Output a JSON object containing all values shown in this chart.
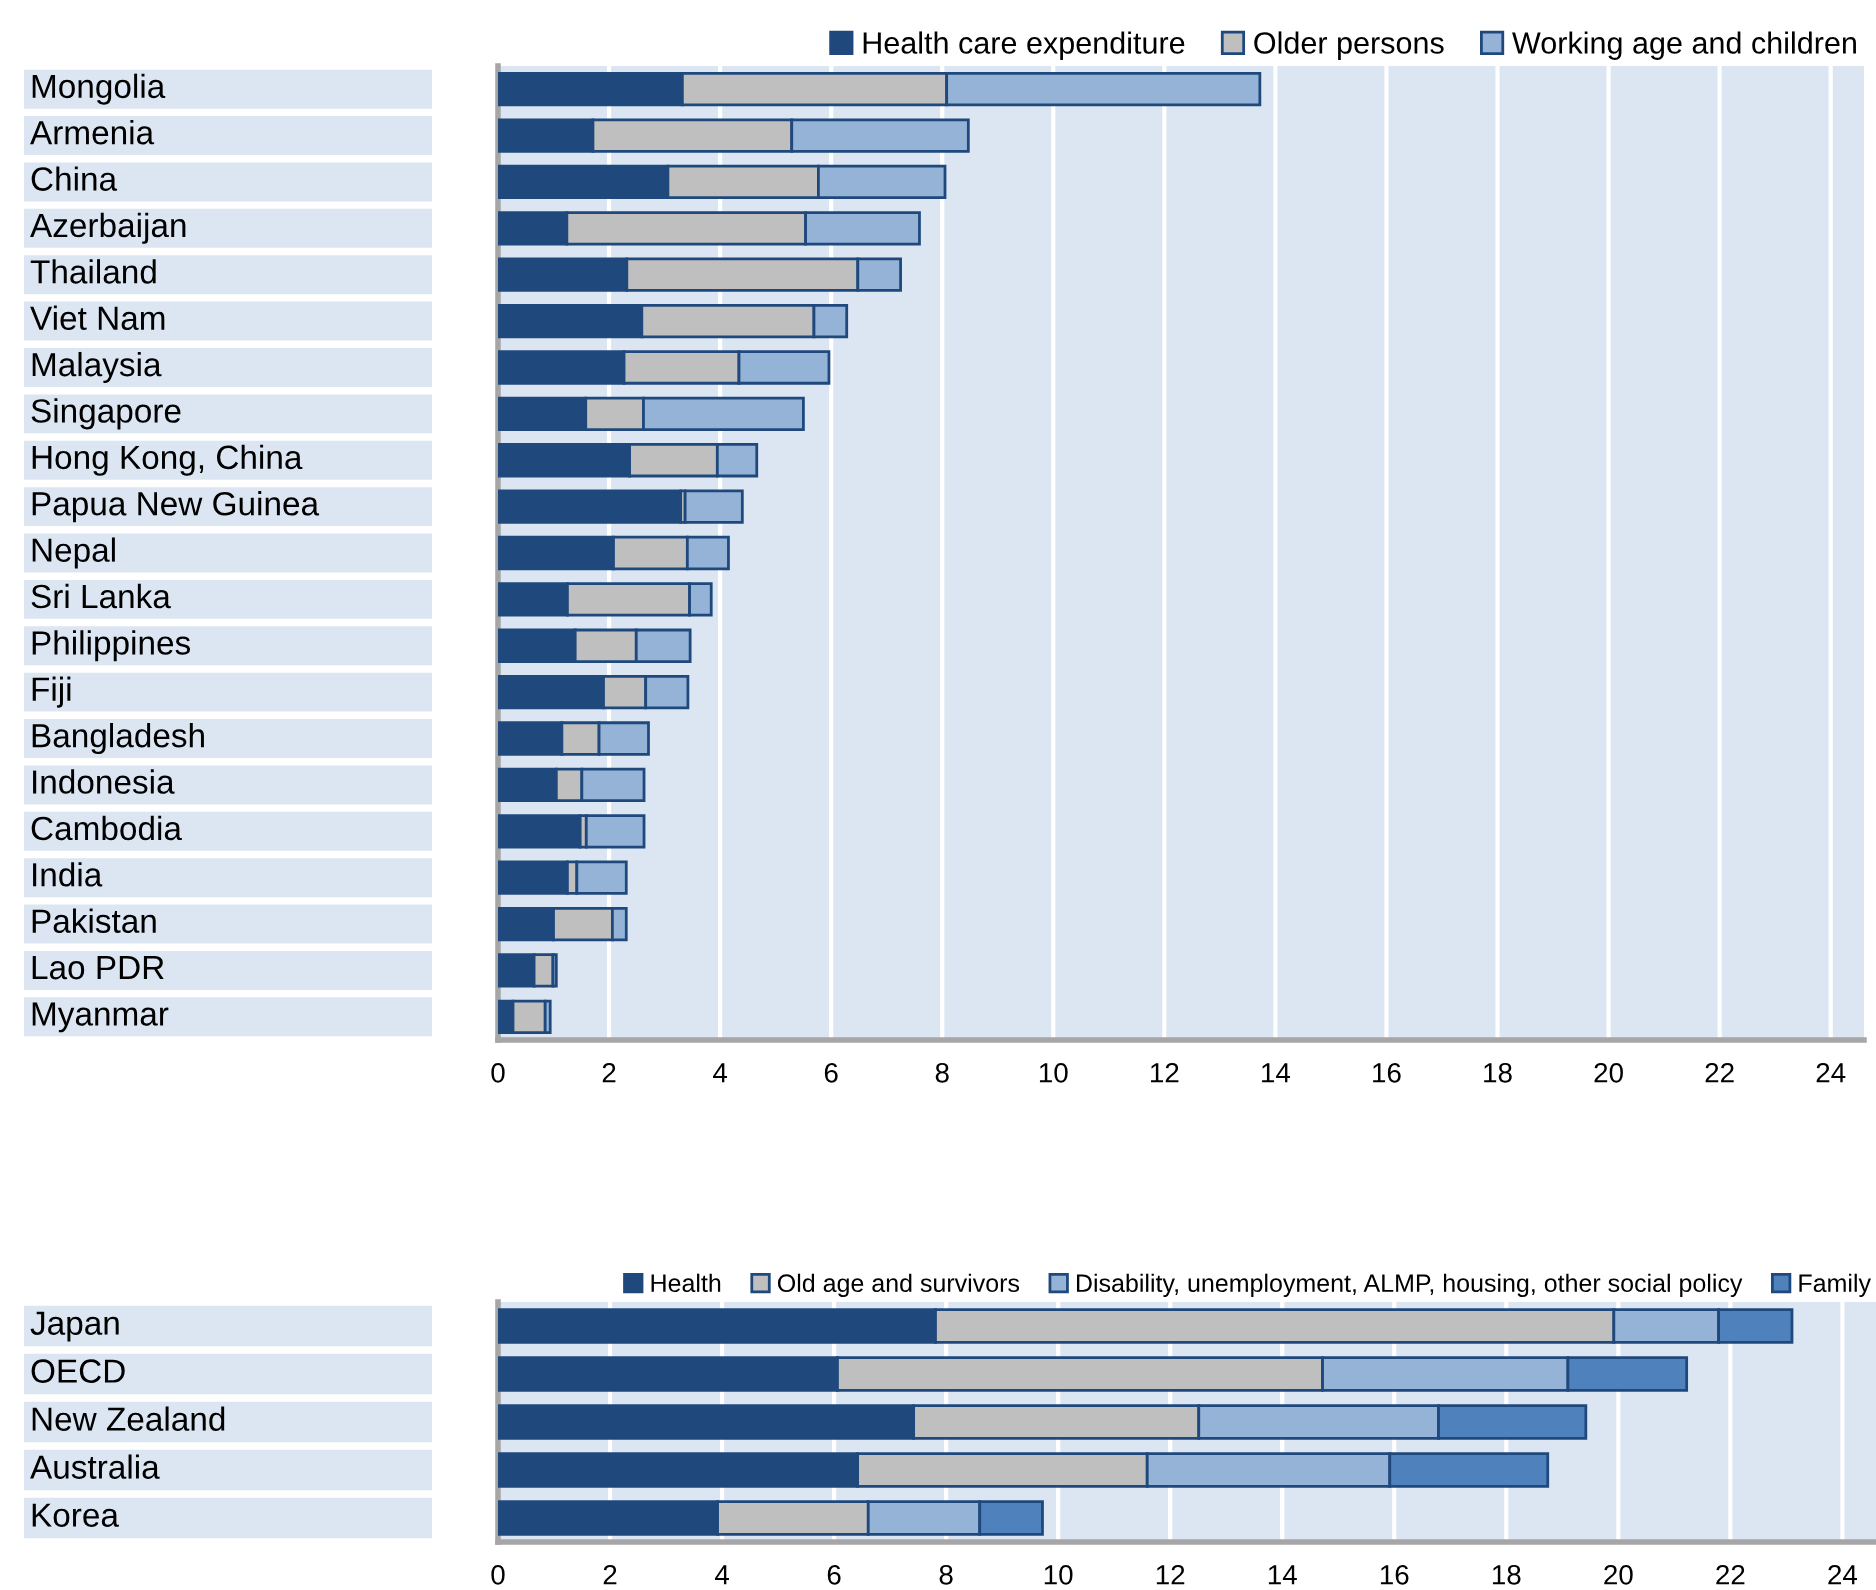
{
  "chart_data": [
    {
      "type": "bar",
      "orientation": "horizontal",
      "stacked": true,
      "legend": "top",
      "grid": "x",
      "categories": [
        "Mongolia",
        "Armenia",
        "China",
        "Azerbaijan",
        "Thailand",
        "Viet Nam",
        "Malaysia",
        "Singapore",
        "Hong Kong, China",
        "Papua New Guinea",
        "Nepal",
        "Sri Lanka",
        "Philippines",
        "Fiji",
        "Bangladesh",
        "Indonesia",
        "Cambodia",
        "India",
        "Pakistan",
        "Lao PDR",
        "Myanmar"
      ],
      "xlim": [
        0,
        24.6
      ],
      "xticks": [
        0,
        2,
        4,
        6,
        8,
        10,
        12,
        14,
        16,
        18,
        20,
        22,
        24
      ],
      "series": [
        {
          "name": "Health care expenditure",
          "color": "#1f497d",
          "values": [
            3.32,
            1.71,
            3.06,
            1.24,
            2.32,
            2.59,
            2.27,
            1.58,
            2.37,
            3.29,
            2.08,
            1.25,
            1.39,
            1.9,
            1.15,
            1.05,
            1.48,
            1.25,
            1.0,
            0.65,
            0.27
          ]
        },
        {
          "name": "Older persons",
          "color": "#bfbfbf",
          "values": [
            4.76,
            3.58,
            2.71,
            4.3,
            4.16,
            3.1,
            2.07,
            1.04,
            1.58,
            0.08,
            1.33,
            2.2,
            1.1,
            0.76,
            0.67,
            0.46,
            0.11,
            0.17,
            1.06,
            0.34,
            0.58
          ]
        },
        {
          "name": "Working age and children",
          "color": "#95b3d7",
          "values": [
            5.64,
            3.18,
            2.28,
            2.05,
            0.77,
            0.59,
            1.62,
            2.88,
            0.71,
            1.03,
            0.74,
            0.39,
            0.97,
            0.76,
            0.89,
            1.12,
            1.04,
            0.89,
            0.25,
            0.06,
            0.09
          ]
        }
      ]
    },
    {
      "type": "bar",
      "orientation": "horizontal",
      "stacked": true,
      "legend": "top",
      "grid": "x",
      "categories": [
        "Japan",
        "OECD",
        "New Zealand",
        "Australia",
        "Korea"
      ],
      "xlim": [
        0,
        24.6
      ],
      "xticks": [
        0,
        2,
        4,
        6,
        8,
        10,
        12,
        14,
        16,
        18,
        20,
        22,
        24
      ],
      "series": [
        {
          "name": "Health",
          "color": "#1f497d",
          "values": [
            7.81,
            6.06,
            7.42,
            6.42,
            3.92
          ]
        },
        {
          "name": "Old age and survivors",
          "color": "#bfbfbf",
          "values": [
            12.11,
            8.66,
            5.09,
            5.17,
            2.69
          ]
        },
        {
          "name": "Disability, unemployment, ALMP, housing, other social policy",
          "color": "#95b3d7",
          "values": [
            1.87,
            4.38,
            4.28,
            4.33,
            1.99
          ]
        },
        {
          "name": "Family",
          "color": "#4f81bd",
          "values": [
            1.31,
            2.12,
            2.63,
            2.82,
            1.12
          ]
        }
      ]
    }
  ]
}
